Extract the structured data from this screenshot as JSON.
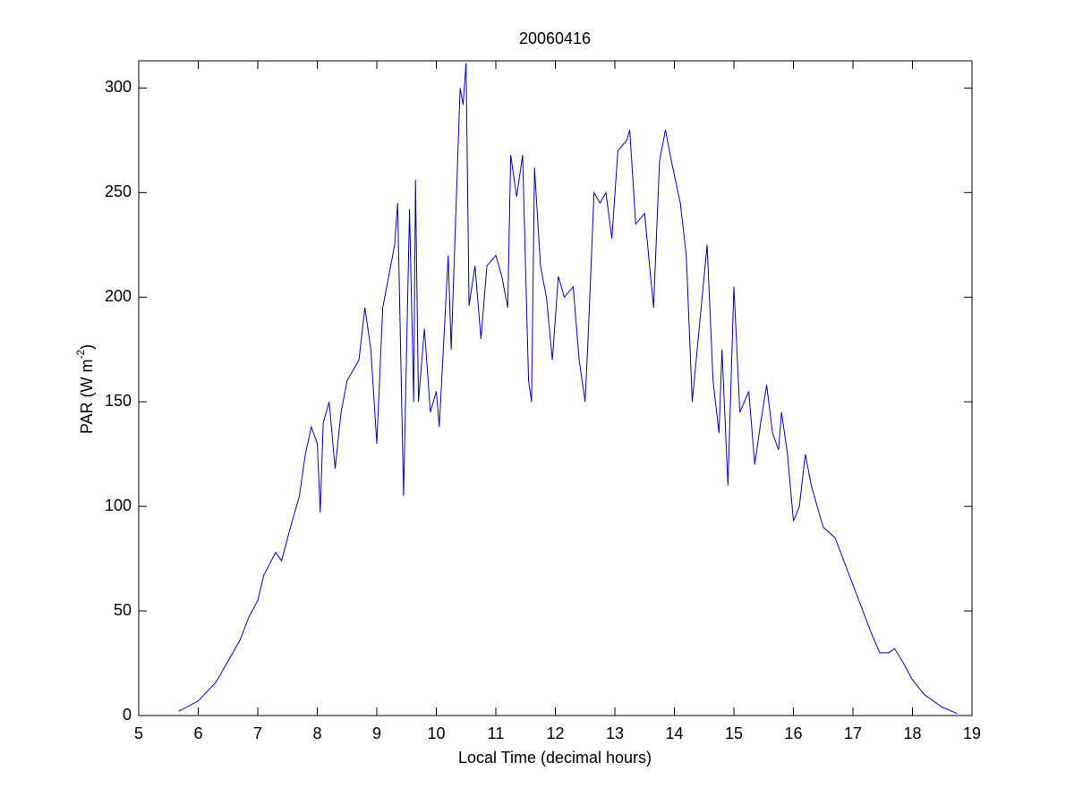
{
  "chart_data": {
    "type": "line",
    "title": "20060416",
    "xlabel": "Local Time (decimal hours)",
    "ylabel": "PAR (W m",
    "ylabel_superscript": "-2",
    "ylabel_end": ")",
    "color": "#0000cc",
    "xlim": [
      5,
      19
    ],
    "xticks": [
      5,
      6,
      7,
      8,
      9,
      10,
      11,
      12,
      13,
      14,
      15,
      16,
      17,
      18,
      19
    ],
    "ylim": [
      0,
      313
    ],
    "yticks": [
      0,
      50,
      100,
      150,
      200,
      250,
      300
    ],
    "grid": false,
    "x": [
      5.67,
      6.0,
      6.3,
      6.5,
      6.7,
      6.85,
      7.0,
      7.1,
      7.3,
      7.4,
      7.55,
      7.7,
      7.8,
      7.9,
      8.0,
      8.05,
      8.1,
      8.2,
      8.3,
      8.4,
      8.5,
      8.6,
      8.7,
      8.8,
      8.9,
      9.0,
      9.1,
      9.2,
      9.3,
      9.35,
      9.45,
      9.55,
      9.62,
      9.65,
      9.7,
      9.8,
      9.9,
      10.0,
      10.05,
      10.2,
      10.25,
      10.4,
      10.45,
      10.5,
      10.55,
      10.65,
      10.75,
      10.85,
      11.0,
      11.1,
      11.2,
      11.25,
      11.35,
      11.45,
      11.55,
      11.6,
      11.65,
      11.75,
      11.85,
      11.95,
      12.05,
      12.15,
      12.3,
      12.4,
      12.5,
      12.55,
      12.65,
      12.75,
      12.85,
      12.95,
      13.05,
      13.2,
      13.25,
      13.35,
      13.5,
      13.65,
      13.75,
      13.85,
      13.95,
      14.1,
      14.2,
      14.3,
      14.4,
      14.5,
      14.55,
      14.65,
      14.75,
      14.8,
      14.9,
      15.0,
      15.1,
      15.25,
      15.35,
      15.45,
      15.55,
      15.65,
      15.75,
      15.8,
      15.9,
      16.0,
      16.1,
      16.2,
      16.3,
      16.5,
      16.7,
      16.9,
      17.1,
      17.3,
      17.45,
      17.6,
      17.7,
      17.85,
      18.0,
      18.2,
      18.5,
      18.75
    ],
    "values": [
      2,
      7,
      16,
      26,
      36,
      47,
      55,
      67,
      78,
      74,
      90,
      105,
      125,
      138,
      130,
      97,
      140,
      150,
      118,
      145,
      160,
      165,
      170,
      195,
      175,
      130,
      195,
      210,
      225,
      245,
      105,
      242,
      150,
      256,
      150,
      185,
      145,
      155,
      138,
      220,
      175,
      300,
      292,
      312,
      196,
      215,
      180,
      215,
      220,
      210,
      195,
      268,
      248,
      268,
      160,
      150,
      262,
      215,
      200,
      170,
      210,
      200,
      205,
      170,
      150,
      180,
      250,
      245,
      250,
      228,
      270,
      275,
      280,
      235,
      240,
      195,
      265,
      280,
      265,
      245,
      220,
      150,
      180,
      210,
      225,
      160,
      135,
      175,
      110,
      205,
      145,
      155,
      120,
      140,
      158,
      135,
      127,
      145,
      125,
      93,
      100,
      125,
      110,
      90,
      85,
      70,
      55,
      40,
      30,
      30,
      32,
      25,
      17,
      10,
      4,
      1
    ]
  }
}
